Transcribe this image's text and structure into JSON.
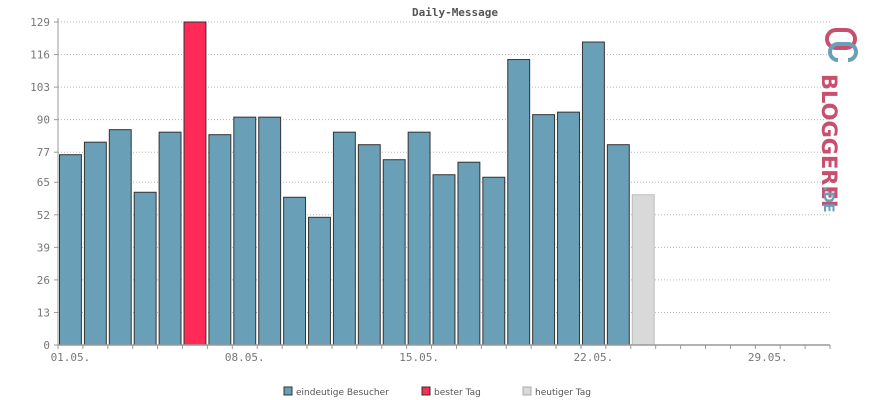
{
  "chart_data": {
    "type": "bar",
    "title": "Daily-Message",
    "yticks": [
      "0",
      "13",
      "26",
      "39",
      "52",
      "65",
      "77",
      "90",
      "103",
      "116",
      "129"
    ],
    "ylim": [
      0,
      129
    ],
    "xticks": [
      {
        "label": "01.05.",
        "index": 0
      },
      {
        "label": "08.05.",
        "index": 7
      },
      {
        "label": "15.05.",
        "index": 14
      },
      {
        "label": "22.05.",
        "index": 21
      },
      {
        "label": "29.05.",
        "index": 28
      }
    ],
    "num_slots": 31,
    "grid": true,
    "legend_position": "bottom",
    "series": [
      {
        "name": "eindeutige Besucher",
        "color": "#6a9fb8"
      },
      {
        "name": "bester Tag",
        "color": "#ff2a55"
      },
      {
        "name": "heutiger Tag",
        "color": "#d9d9d9"
      }
    ],
    "values": [
      76,
      81,
      86,
      61,
      85,
      129,
      84,
      91,
      91,
      59,
      51,
      85,
      80,
      74,
      85,
      68,
      73,
      67,
      114,
      92,
      93,
      121,
      80,
      60
    ],
    "kinds": [
      "u",
      "u",
      "u",
      "u",
      "u",
      "b",
      "u",
      "u",
      "u",
      "u",
      "u",
      "u",
      "u",
      "u",
      "u",
      "u",
      "u",
      "u",
      "u",
      "u",
      "u",
      "u",
      "u",
      "t"
    ]
  },
  "logo": {
    "text_main": "BLOGGEREI",
    "text_suffix": ".DE",
    "color_main": "#c8506e",
    "color_suffix": "#6a9fb8"
  }
}
